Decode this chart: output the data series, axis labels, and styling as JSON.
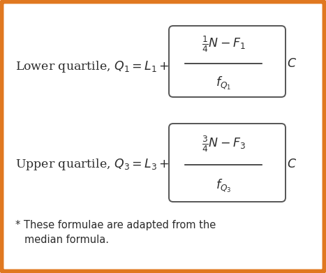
{
  "background_color": "#ffffff",
  "border_color": "#E07820",
  "border_linewidth": 5,
  "fig_width": 4.67,
  "fig_height": 3.91,
  "text_color": "#2c2c2c",
  "box_edge_color": "#555555",
  "font_size_formula": 12.5,
  "font_size_footnote": 10.5,
  "footnote_line1": "* These formulae are adapted from the",
  "footnote_line2": "median formula."
}
